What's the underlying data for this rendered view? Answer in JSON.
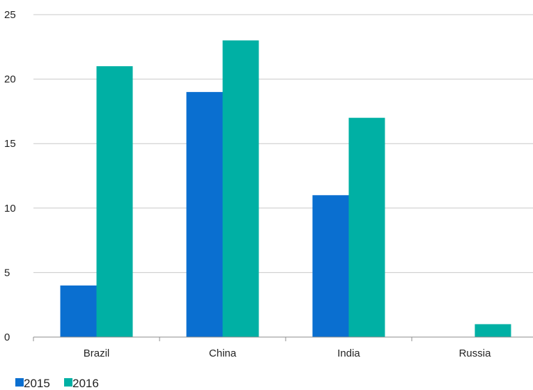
{
  "chart_data": {
    "type": "bar",
    "categories": [
      "Brazil",
      "China",
      "India",
      "Russia"
    ],
    "series": [
      {
        "name": "2015",
        "values": [
          4,
          19,
          11,
          0
        ],
        "color": "#0a6fd0"
      },
      {
        "name": "2016",
        "values": [
          21,
          23,
          17,
          1
        ],
        "color": "#00b0a4"
      }
    ],
    "ylim": [
      0,
      25
    ],
    "yticks": [
      0,
      5,
      10,
      15,
      20,
      25
    ],
    "grid": true,
    "legend_position": "bottom-left"
  }
}
